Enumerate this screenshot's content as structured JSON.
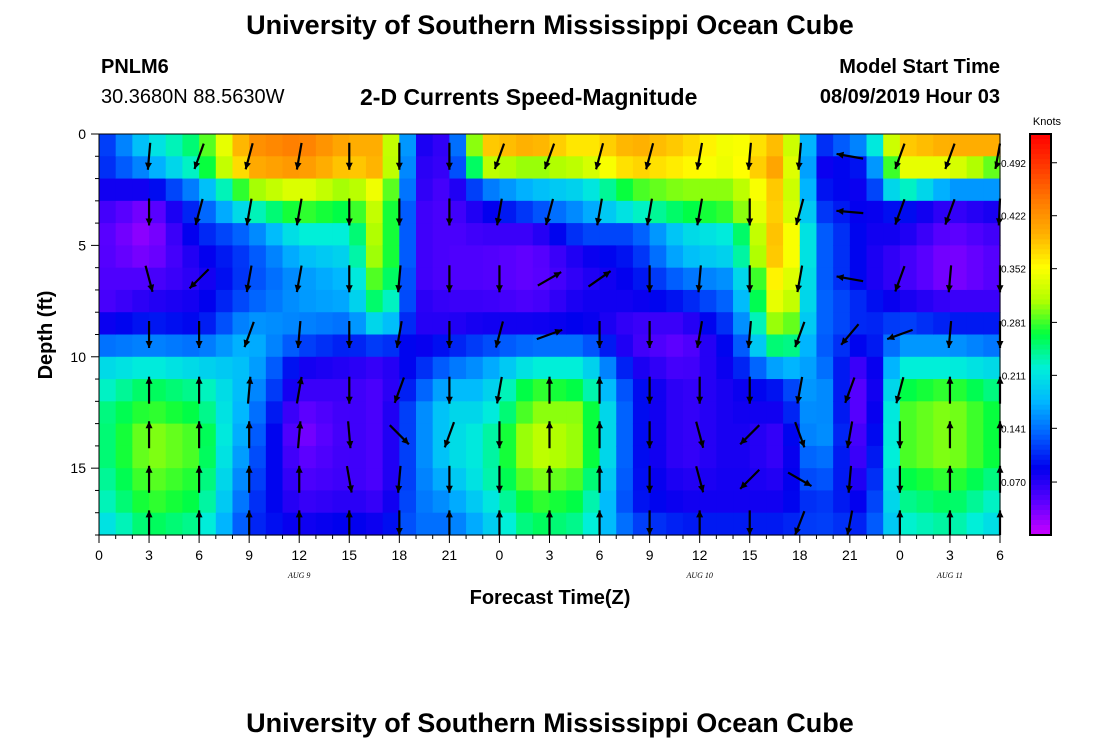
{
  "header": {
    "title_top": "University of Southern Mississippi Ocean Cube",
    "title_bottom": "University of Southern Mississippi Ocean Cube",
    "station_id": "PNLM6",
    "station_coords": "30.3680N 88.5630W",
    "model_start_label": "Model Start Time",
    "model_start_value": "08/09/2019 Hour 03"
  },
  "chart_data": {
    "type": "heatmap",
    "title": "2-D Currents Speed-Magnitude",
    "xlabel": "Forecast Time(Z)",
    "ylabel": "Depth (ft)",
    "x_tick_labels": [
      "0",
      "3",
      "6",
      "9",
      "12",
      "15",
      "18",
      "21",
      "0",
      "3",
      "6",
      "9",
      "12",
      "15",
      "18",
      "21",
      "0",
      "3",
      "6"
    ],
    "x_range_hours": [
      0,
      54
    ],
    "y_ticks": [
      0,
      5,
      10,
      15
    ],
    "y_tick_labels": [
      "0",
      "5",
      "10",
      "15"
    ],
    "ylim": [
      0,
      18
    ],
    "y_inverted": true,
    "date_labels": [
      {
        "text": "AUG  9",
        "hour": 12
      },
      {
        "text": "AUG  10",
        "hour": 36
      },
      {
        "text": "AUG  11",
        "hour": 51
      }
    ],
    "colorbar": {
      "unit": "Knots",
      "tick_labels": [
        "0.492",
        "0.422",
        "0.352",
        "0.281",
        "0.211",
        "0.141",
        "0.070"
      ],
      "tick_values": [
        0.492,
        0.422,
        0.352,
        0.281,
        0.211,
        0.141,
        0.07
      ],
      "range": [
        0,
        0.53
      ],
      "colors": [
        "#cc00ff",
        "#5a00ff",
        "#0000ee",
        "#0060ff",
        "#00b8ff",
        "#00f0d8",
        "#00ff40",
        "#b0ff00",
        "#ffff00",
        "#ffb000",
        "#ff7a00",
        "#ff3a00",
        "#ff0000"
      ]
    },
    "depth_levels_ft": [
      0.5,
      1.5,
      2.5,
      3.5,
      4.5,
      5.5,
      6.5,
      7.5,
      8.5,
      9.5,
      10.5,
      11.5,
      12.5,
      13.5,
      14.5,
      15.5,
      16.5,
      17.5
    ],
    "speed_keyframes": [
      {
        "hour": 0,
        "speed": [
          0.1,
          0.1,
          0.08,
          0.06,
          0.05,
          0.05,
          0.05,
          0.05,
          0.08,
          0.14,
          0.2,
          0.22,
          0.24,
          0.24,
          0.24,
          0.23,
          0.22,
          0.2
        ]
      },
      {
        "hour": 3,
        "speed": [
          0.2,
          0.16,
          0.08,
          0.03,
          0.02,
          0.03,
          0.05,
          0.07,
          0.1,
          0.15,
          0.22,
          0.26,
          0.28,
          0.3,
          0.3,
          0.29,
          0.28,
          0.26
        ]
      },
      {
        "hour": 6,
        "speed": [
          0.26,
          0.24,
          0.16,
          0.12,
          0.1,
          0.08,
          0.07,
          0.08,
          0.09,
          0.14,
          0.2,
          0.24,
          0.26,
          0.28,
          0.28,
          0.27,
          0.26,
          0.24
        ]
      },
      {
        "hour": 9,
        "speed": [
          0.42,
          0.4,
          0.3,
          0.22,
          0.14,
          0.12,
          0.12,
          0.13,
          0.16,
          0.18,
          0.18,
          0.17,
          0.16,
          0.15,
          0.14,
          0.13,
          0.12,
          0.11
        ]
      },
      {
        "hour": 12,
        "speed": [
          0.44,
          0.42,
          0.34,
          0.28,
          0.22,
          0.18,
          0.16,
          0.16,
          0.15,
          0.12,
          0.08,
          0.06,
          0.04,
          0.03,
          0.04,
          0.05,
          0.06,
          0.08
        ]
      },
      {
        "hour": 15,
        "speed": [
          0.4,
          0.38,
          0.3,
          0.26,
          0.22,
          0.2,
          0.18,
          0.17,
          0.14,
          0.1,
          0.07,
          0.06,
          0.06,
          0.06,
          0.06,
          0.06,
          0.07,
          0.09
        ]
      },
      {
        "hour": 17,
        "speed": [
          0.4,
          0.4,
          0.36,
          0.34,
          0.34,
          0.34,
          0.32,
          0.28,
          0.22,
          0.12,
          0.06,
          0.05,
          0.05,
          0.05,
          0.05,
          0.05,
          0.06,
          0.08
        ]
      },
      {
        "hour": 19,
        "speed": [
          0.08,
          0.07,
          0.07,
          0.06,
          0.06,
          0.06,
          0.06,
          0.07,
          0.07,
          0.08,
          0.1,
          0.12,
          0.14,
          0.14,
          0.14,
          0.14,
          0.14,
          0.14
        ]
      },
      {
        "hour": 21,
        "speed": [
          0.06,
          0.06,
          0.05,
          0.05,
          0.05,
          0.05,
          0.05,
          0.06,
          0.07,
          0.1,
          0.14,
          0.18,
          0.2,
          0.2,
          0.2,
          0.18,
          0.16,
          0.14
        ]
      },
      {
        "hour": 23,
        "speed": [
          0.38,
          0.32,
          0.14,
          0.08,
          0.06,
          0.05,
          0.05,
          0.06,
          0.08,
          0.12,
          0.16,
          0.18,
          0.2,
          0.22,
          0.22,
          0.22,
          0.2,
          0.18
        ]
      },
      {
        "hour": 26,
        "speed": [
          0.4,
          0.3,
          0.18,
          0.12,
          0.06,
          0.04,
          0.04,
          0.05,
          0.08,
          0.14,
          0.22,
          0.28,
          0.3,
          0.32,
          0.32,
          0.3,
          0.28,
          0.26
        ]
      },
      {
        "hour": 29,
        "speed": [
          0.36,
          0.32,
          0.2,
          0.16,
          0.12,
          0.08,
          0.07,
          0.08,
          0.09,
          0.14,
          0.22,
          0.26,
          0.3,
          0.3,
          0.3,
          0.28,
          0.26,
          0.24
        ]
      },
      {
        "hour": 32,
        "speed": [
          0.4,
          0.38,
          0.28,
          0.22,
          0.12,
          0.1,
          0.09,
          0.08,
          0.06,
          0.06,
          0.08,
          0.1,
          0.1,
          0.1,
          0.1,
          0.1,
          0.1,
          0.12
        ]
      },
      {
        "hour": 35,
        "speed": [
          0.38,
          0.36,
          0.3,
          0.26,
          0.2,
          0.18,
          0.14,
          0.1,
          0.06,
          0.04,
          0.05,
          0.06,
          0.06,
          0.06,
          0.06,
          0.07,
          0.08,
          0.1
        ]
      },
      {
        "hour": 38,
        "speed": [
          0.34,
          0.34,
          0.3,
          0.28,
          0.22,
          0.2,
          0.16,
          0.14,
          0.12,
          0.1,
          0.09,
          0.08,
          0.08,
          0.08,
          0.08,
          0.08,
          0.08,
          0.1
        ]
      },
      {
        "hour": 41,
        "speed": [
          0.4,
          0.42,
          0.4,
          0.4,
          0.42,
          0.42,
          0.4,
          0.38,
          0.34,
          0.28,
          0.18,
          0.1,
          0.08,
          0.06,
          0.06,
          0.07,
          0.08,
          0.1
        ]
      },
      {
        "hour": 43,
        "speed": [
          0.1,
          0.08,
          0.1,
          0.12,
          0.14,
          0.14,
          0.14,
          0.14,
          0.14,
          0.14,
          0.16,
          0.18,
          0.18,
          0.18,
          0.16,
          0.14,
          0.12,
          0.12
        ]
      },
      {
        "hour": 46,
        "speed": [
          0.16,
          0.1,
          0.08,
          0.08,
          0.08,
          0.08,
          0.08,
          0.1,
          0.1,
          0.08,
          0.04,
          0.02,
          0.02,
          0.03,
          0.04,
          0.06,
          0.08,
          0.1
        ]
      },
      {
        "hour": 48,
        "speed": [
          0.38,
          0.34,
          0.24,
          0.1,
          0.08,
          0.06,
          0.06,
          0.08,
          0.12,
          0.16,
          0.22,
          0.26,
          0.28,
          0.28,
          0.28,
          0.26,
          0.24,
          0.22
        ]
      },
      {
        "hour": 51,
        "speed": [
          0.4,
          0.34,
          0.16,
          0.06,
          0.04,
          0.03,
          0.03,
          0.06,
          0.1,
          0.16,
          0.22,
          0.28,
          0.3,
          0.3,
          0.3,
          0.28,
          0.26,
          0.24
        ]
      },
      {
        "hour": 54,
        "speed": [
          0.4,
          0.28,
          0.16,
          0.08,
          0.06,
          0.05,
          0.05,
          0.06,
          0.1,
          0.14,
          0.2,
          0.24,
          0.26,
          0.26,
          0.26,
          0.24,
          0.22,
          0.2
        ]
      }
    ],
    "vector_depths_ft": [
      1,
      3.5,
      6.5,
      9,
      11.5,
      13.5,
      15.5,
      17.5
    ],
    "vectors": [
      {
        "hour": 3,
        "dirs_deg": [
          185,
          180,
          165,
          180,
          0,
          0,
          0,
          0
        ]
      },
      {
        "hour": 6,
        "dirs_deg": [
          200,
          195,
          225,
          180,
          0,
          0,
          0,
          0
        ]
      },
      {
        "hour": 9,
        "dirs_deg": [
          195,
          190,
          190,
          200,
          5,
          0,
          0,
          0
        ]
      },
      {
        "hour": 12,
        "dirs_deg": [
          190,
          190,
          190,
          185,
          10,
          5,
          0,
          0
        ]
      },
      {
        "hour": 15,
        "dirs_deg": [
          180,
          180,
          180,
          180,
          180,
          175,
          170,
          0
        ]
      },
      {
        "hour": 18,
        "dirs_deg": [
          180,
          180,
          185,
          190,
          200,
          135,
          185,
          180
        ]
      },
      {
        "hour": 21,
        "dirs_deg": [
          180,
          180,
          180,
          180,
          180,
          200,
          180,
          0
        ]
      },
      {
        "hour": 24,
        "dirs_deg": [
          200,
          190,
          180,
          195,
          190,
          180,
          180,
          0
        ]
      },
      {
        "hour": 27,
        "dirs_deg": [
          200,
          195,
          60,
          70,
          0,
          0,
          0,
          0
        ]
      },
      {
        "hour": 30,
        "dirs_deg": [
          195,
          190,
          55,
          180,
          0,
          0,
          0,
          0
        ]
      },
      {
        "hour": 33,
        "dirs_deg": [
          195,
          190,
          180,
          180,
          180,
          180,
          180,
          180
        ]
      },
      {
        "hour": 36,
        "dirs_deg": [
          190,
          190,
          185,
          190,
          180,
          165,
          165,
          0
        ]
      },
      {
        "hour": 39,
        "dirs_deg": [
          185,
          180,
          180,
          185,
          180,
          225,
          225,
          180
        ]
      },
      {
        "hour": 42,
        "dirs_deg": [
          185,
          195,
          190,
          200,
          190,
          160,
          120,
          200
        ]
      },
      {
        "hour": 45,
        "dirs_deg": [
          280,
          275,
          280,
          220,
          200,
          190,
          185,
          190
        ]
      },
      {
        "hour": 48,
        "dirs_deg": [
          200,
          200,
          200,
          250,
          195,
          180,
          180,
          0
        ]
      },
      {
        "hour": 51,
        "dirs_deg": [
          200,
          200,
          185,
          185,
          0,
          0,
          0,
          0
        ]
      },
      {
        "hour": 54,
        "dirs_deg": [
          200,
          185,
          180,
          180,
          0,
          0,
          0,
          0
        ]
      }
    ]
  }
}
